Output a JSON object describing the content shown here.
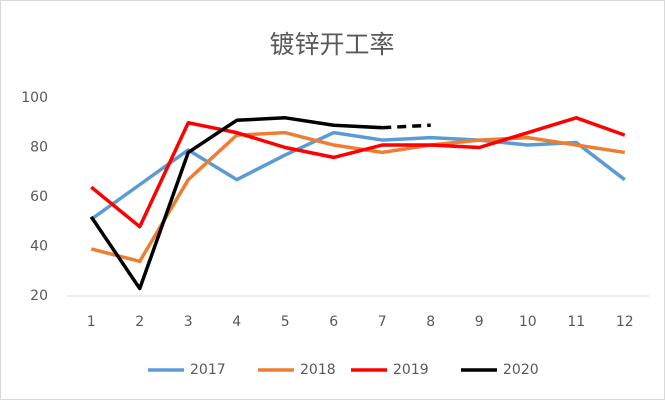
{
  "chart_data": {
    "type": "line",
    "title": "镀锌开工率",
    "categories": [
      "1",
      "2",
      "3",
      "4",
      "5",
      "6",
      "7",
      "8",
      "9",
      "10",
      "11",
      "12"
    ],
    "ylim": [
      20,
      100
    ],
    "yticks": [
      20,
      40,
      60,
      80,
      100
    ],
    "grid": false,
    "legend": "bottom",
    "series": [
      {
        "name": "2017",
        "color": "#5b9bd5",
        "values": [
          51,
          65,
          79,
          67,
          77,
          86,
          83,
          84,
          83,
          81,
          82,
          67
        ]
      },
      {
        "name": "2018",
        "color": "#ed7d31",
        "values": [
          39,
          34,
          67,
          85,
          86,
          81,
          78,
          81,
          83,
          84,
          81,
          78
        ]
      },
      {
        "name": "2019",
        "color": "#ff0000",
        "values": [
          64,
          48,
          90,
          86,
          80,
          76,
          81,
          81,
          80,
          86,
          92,
          85
        ]
      },
      {
        "name": "2020",
        "color": "#000000",
        "dashed_from": 6,
        "values": [
          52,
          23,
          78,
          91,
          92,
          89,
          88,
          89,
          null,
          null,
          null,
          null
        ]
      }
    ]
  }
}
